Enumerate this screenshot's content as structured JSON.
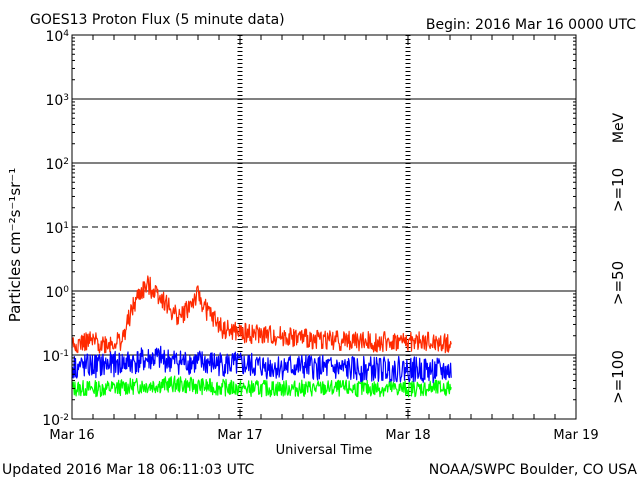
{
  "chart_data": {
    "type": "line",
    "title": "GOES13 Proton Flux (5 minute data)",
    "begin_label": "Begin: 2016 Mar 16 0000 UTC",
    "ylabel": "Particles cm⁻²s⁻¹sr⁻¹",
    "xlabel": "Universal Time",
    "x_unit": "days since 2016 Mar 16 0000 UTC",
    "xlim": [
      0,
      3
    ],
    "x_ticks": [
      {
        "value": 0,
        "label": "Mar 16"
      },
      {
        "value": 1,
        "label": "Mar 17"
      },
      {
        "value": 2,
        "label": "Mar 18"
      },
      {
        "value": 3,
        "label": "Mar 19"
      }
    ],
    "ylog": true,
    "ylim": [
      0.01,
      10000
    ],
    "y_ticks": [
      {
        "value": 10000,
        "base": "10",
        "exp": "4"
      },
      {
        "value": 1000,
        "base": "10",
        "exp": "3"
      },
      {
        "value": 100,
        "base": "10",
        "exp": "2"
      },
      {
        "value": 10,
        "base": "10",
        "exp": "1"
      },
      {
        "value": 1,
        "base": "10",
        "exp": "0"
      },
      {
        "value": 0.1,
        "base": "10",
        "exp": "-1"
      },
      {
        "value": 0.01,
        "base": "10",
        "exp": "-2"
      }
    ],
    "threshold_line": {
      "value": 10,
      "style": "dashed"
    },
    "legend_unit": "MeV",
    "series": [
      {
        "name": ">=10",
        "color": "#ff2a00",
        "x": [
          0.0,
          0.1,
          0.2,
          0.3,
          0.35,
          0.4,
          0.45,
          0.5,
          0.55,
          0.6,
          0.65,
          0.7,
          0.75,
          0.8,
          0.85,
          0.9,
          1.0,
          1.2,
          1.4,
          1.6,
          1.8,
          2.0,
          2.1,
          2.2,
          2.26
        ],
        "values": [
          0.15,
          0.16,
          0.15,
          0.17,
          0.45,
          0.9,
          1.2,
          1.0,
          0.7,
          0.45,
          0.4,
          0.6,
          0.85,
          0.5,
          0.35,
          0.25,
          0.22,
          0.2,
          0.18,
          0.17,
          0.16,
          0.16,
          0.16,
          0.15,
          0.15
        ]
      },
      {
        "name": ">=50",
        "color": "#0000ff",
        "x": [
          0.0,
          0.2,
          0.4,
          0.5,
          0.6,
          0.8,
          1.0,
          1.2,
          1.4,
          1.6,
          1.8,
          2.0,
          2.26
        ],
        "values": [
          0.065,
          0.07,
          0.08,
          0.09,
          0.08,
          0.075,
          0.07,
          0.065,
          0.065,
          0.06,
          0.06,
          0.06,
          0.055
        ]
      },
      {
        "name": ">=100",
        "color": "#00ff00",
        "x": [
          0.0,
          0.2,
          0.4,
          0.6,
          0.8,
          1.0,
          1.2,
          1.4,
          1.6,
          1.8,
          2.0,
          2.26
        ],
        "values": [
          0.03,
          0.03,
          0.033,
          0.035,
          0.032,
          0.03,
          0.03,
          0.03,
          0.03,
          0.03,
          0.03,
          0.03
        ]
      }
    ]
  },
  "footer": {
    "updated": "Updated 2016 Mar 18 06:11:03 UTC",
    "credit": "NOAA/SWPC Boulder, CO USA"
  }
}
